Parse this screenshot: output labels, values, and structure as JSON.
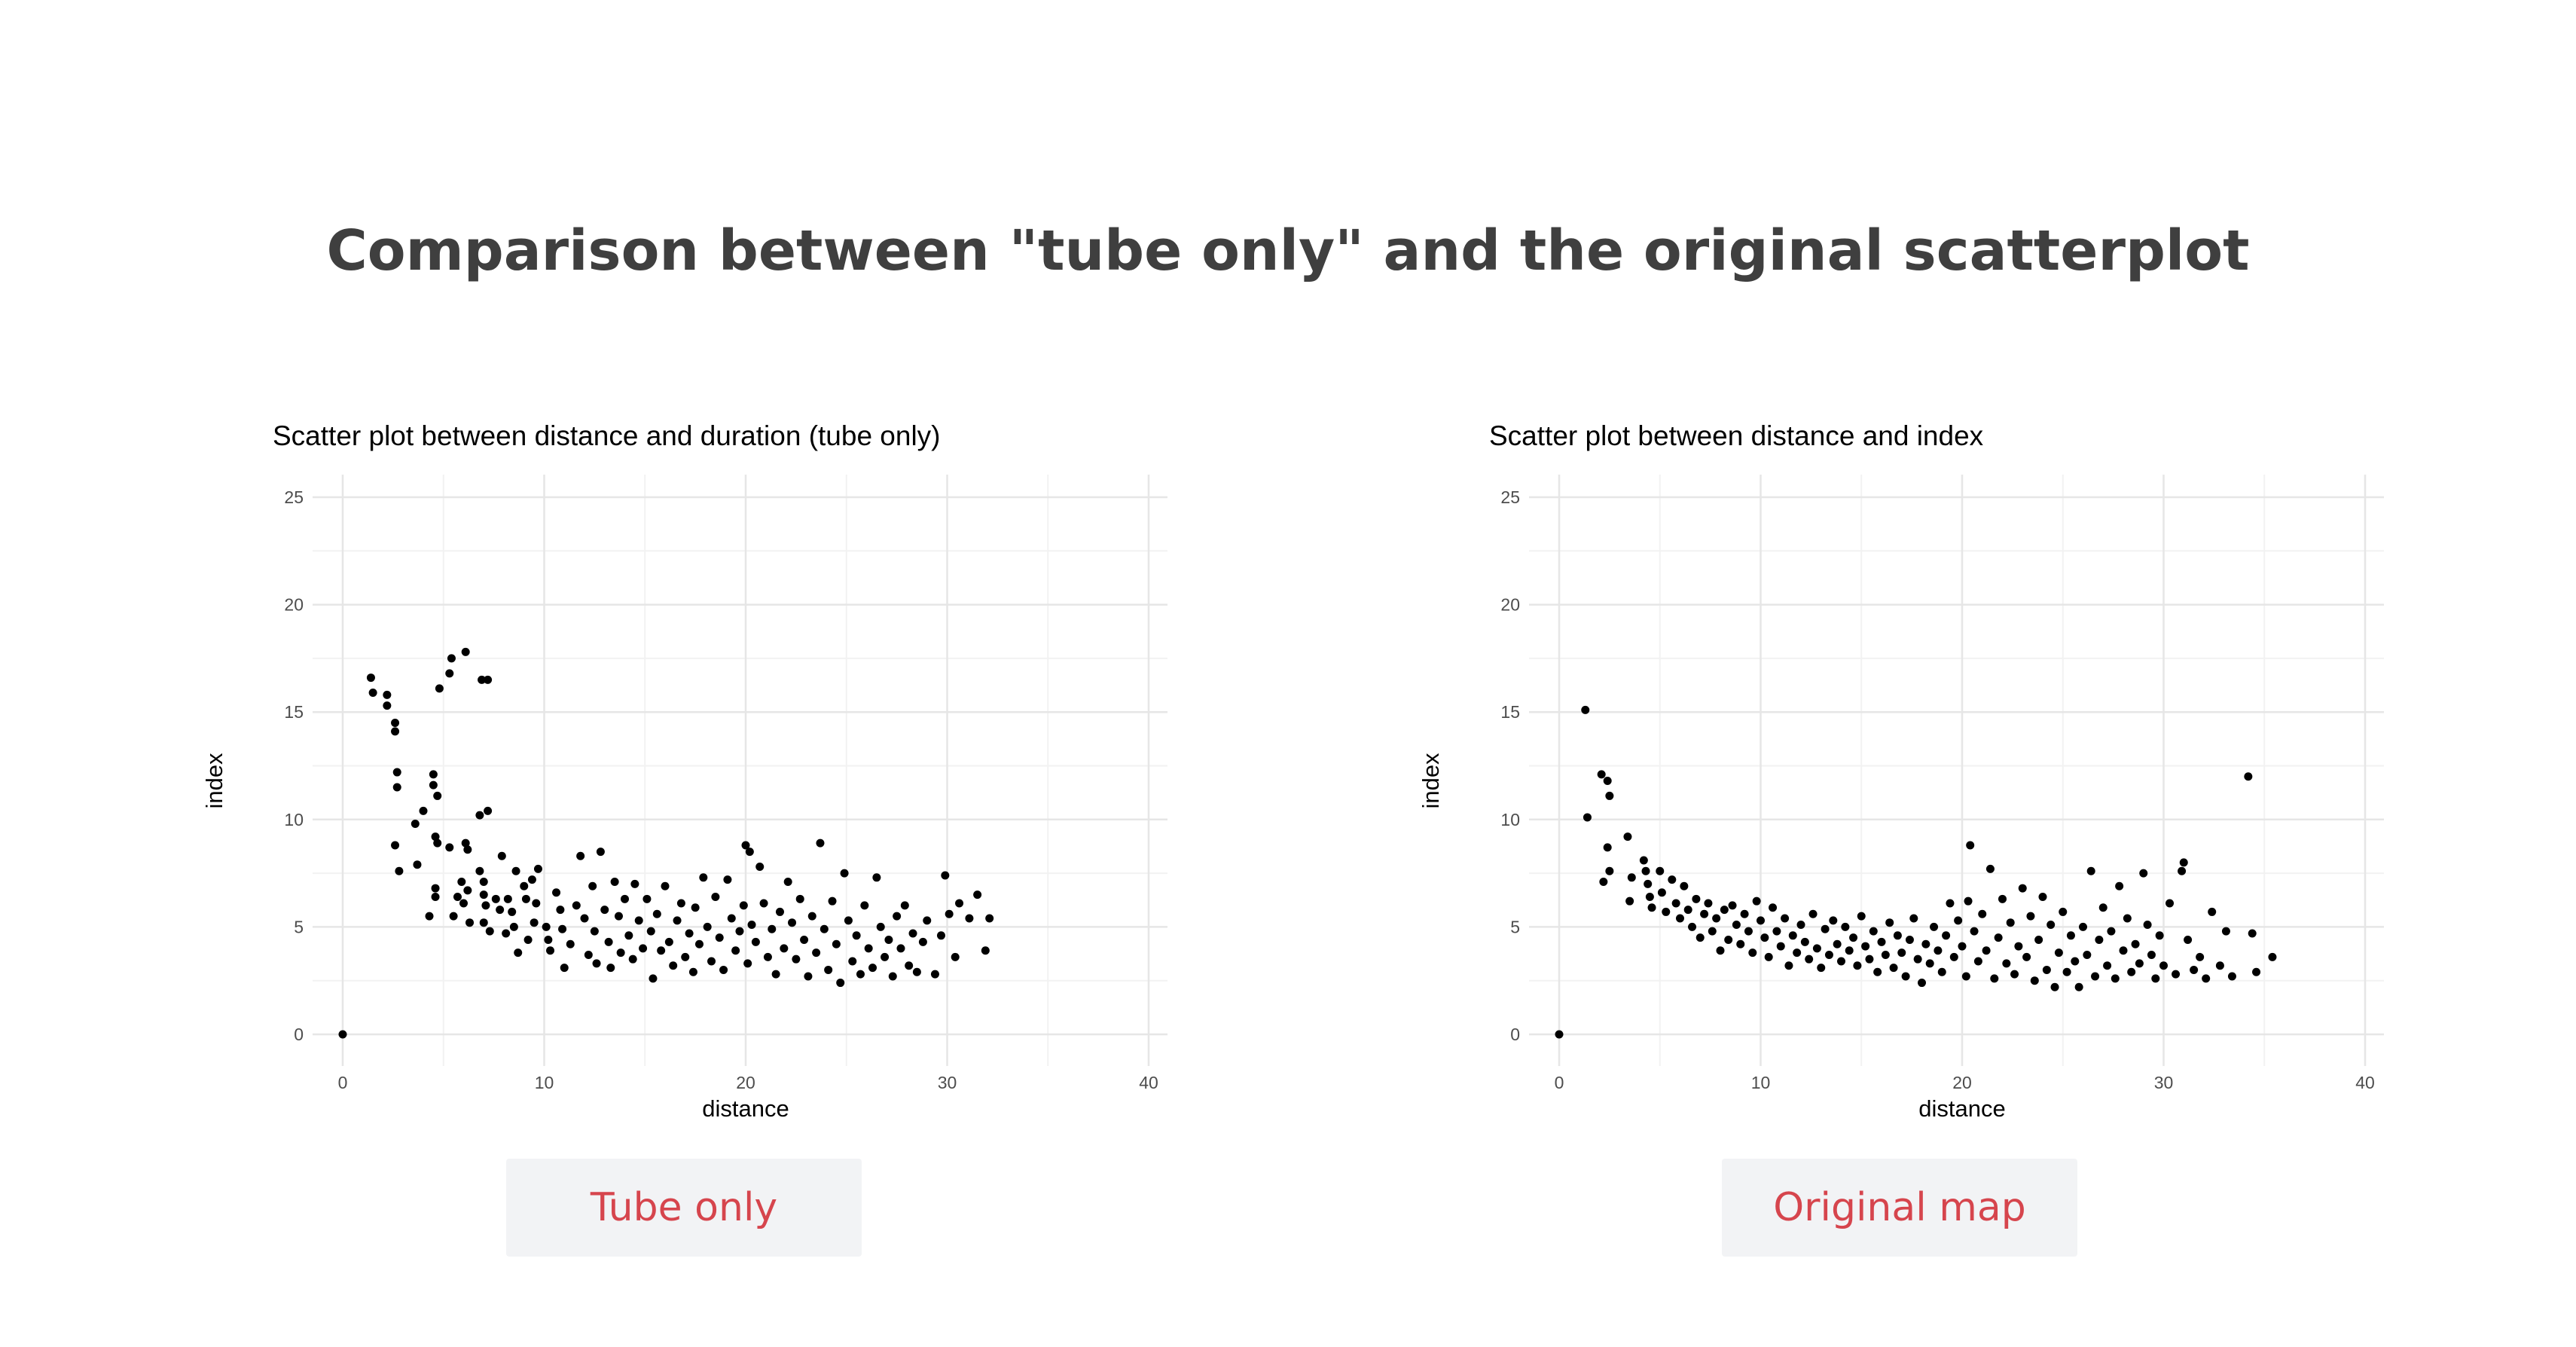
{
  "page": {
    "title": "Comparison between \"tube only\" and the original scatterplot"
  },
  "buttons": {
    "tube_only": "Tube only",
    "original_map": "Original map"
  },
  "colors": {
    "title": "#3f3f3f",
    "button_bg": "#f2f3f5",
    "button_text": "#d6454d",
    "grid": "#e6e6e6",
    "point": "#000000"
  },
  "chart_data": [
    {
      "type": "scatter",
      "title": "Scatter plot between distance and duration (tube only)",
      "xlabel": "distance",
      "ylabel": "index",
      "xlim": [
        0,
        40
      ],
      "ylim": [
        0,
        25
      ],
      "xticks": [
        0,
        10,
        20,
        30,
        40
      ],
      "yticks": [
        0,
        5,
        10,
        15,
        20,
        25
      ],
      "grid": true,
      "points": [
        [
          0,
          0
        ],
        [
          1.4,
          16.6
        ],
        [
          1.5,
          15.9
        ],
        [
          2.2,
          15.8
        ],
        [
          2.2,
          15.3
        ],
        [
          2.6,
          14.5
        ],
        [
          2.6,
          14.1
        ],
        [
          2.7,
          12.2
        ],
        [
          2.7,
          11.5
        ],
        [
          2.6,
          8.8
        ],
        [
          2.8,
          7.6
        ],
        [
          3.6,
          9.8
        ],
        [
          3.7,
          7.9
        ],
        [
          4.0,
          10.4
        ],
        [
          4.3,
          5.5
        ],
        [
          4.5,
          12.1
        ],
        [
          4.5,
          11.6
        ],
        [
          4.7,
          11.1
        ],
        [
          4.6,
          9.2
        ],
        [
          4.7,
          8.9
        ],
        [
          4.6,
          6.8
        ],
        [
          4.6,
          6.4
        ],
        [
          4.8,
          16.1
        ],
        [
          5.4,
          17.5
        ],
        [
          5.3,
          16.8
        ],
        [
          5.3,
          8.7
        ],
        [
          5.7,
          6.4
        ],
        [
          5.9,
          7.1
        ],
        [
          5.5,
          5.5
        ],
        [
          6.1,
          17.8
        ],
        [
          6.1,
          8.9
        ],
        [
          6.2,
          8.6
        ],
        [
          6.2,
          6.7
        ],
        [
          6.0,
          6.1
        ],
        [
          6.3,
          5.2
        ],
        [
          6.8,
          10.2
        ],
        [
          6.9,
          16.5
        ],
        [
          7.2,
          16.5
        ],
        [
          7.2,
          10.4
        ],
        [
          6.8,
          7.6
        ],
        [
          7.0,
          7.1
        ],
        [
          7.0,
          6.5
        ],
        [
          7.1,
          6.0
        ],
        [
          7.0,
          5.2
        ],
        [
          7.3,
          4.8
        ],
        [
          7.6,
          6.3
        ],
        [
          7.9,
          8.3
        ],
        [
          7.8,
          5.8
        ],
        [
          8.1,
          4.7
        ],
        [
          8.2,
          6.3
        ],
        [
          8.4,
          5.7
        ],
        [
          8.6,
          7.6
        ],
        [
          8.5,
          5.0
        ],
        [
          8.7,
          3.8
        ],
        [
          9.0,
          6.9
        ],
        [
          9.1,
          6.3
        ],
        [
          9.2,
          4.4
        ],
        [
          9.4,
          7.2
        ],
        [
          9.6,
          6.1
        ],
        [
          9.5,
          5.2
        ],
        [
          9.7,
          7.7
        ],
        [
          10.1,
          5.0
        ],
        [
          10.2,
          4.4
        ],
        [
          10.3,
          3.9
        ],
        [
          10.6,
          6.6
        ],
        [
          10.8,
          5.8
        ],
        [
          10.9,
          4.9
        ],
        [
          11.0,
          3.1
        ],
        [
          11.3,
          4.2
        ],
        [
          11.6,
          6.0
        ],
        [
          11.8,
          8.3
        ],
        [
          12.0,
          5.4
        ],
        [
          12.2,
          3.7
        ],
        [
          12.4,
          6.9
        ],
        [
          12.5,
          4.8
        ],
        [
          12.6,
          3.3
        ],
        [
          12.8,
          8.5
        ],
        [
          13.0,
          5.8
        ],
        [
          13.2,
          4.3
        ],
        [
          13.3,
          3.1
        ],
        [
          13.5,
          7.1
        ],
        [
          13.7,
          5.5
        ],
        [
          13.8,
          3.8
        ],
        [
          14.0,
          6.3
        ],
        [
          14.2,
          4.6
        ],
        [
          14.4,
          3.5
        ],
        [
          14.5,
          7.0
        ],
        [
          14.7,
          5.3
        ],
        [
          14.9,
          4.0
        ],
        [
          15.1,
          6.3
        ],
        [
          15.3,
          4.8
        ],
        [
          15.4,
          2.6
        ],
        [
          15.6,
          5.6
        ],
        [
          15.8,
          3.9
        ],
        [
          16.0,
          6.9
        ],
        [
          16.2,
          4.3
        ],
        [
          16.4,
          3.2
        ],
        [
          16.6,
          5.3
        ],
        [
          16.8,
          6.1
        ],
        [
          17.0,
          3.6
        ],
        [
          17.2,
          4.7
        ],
        [
          17.4,
          2.9
        ],
        [
          17.5,
          5.9
        ],
        [
          17.7,
          4.2
        ],
        [
          17.9,
          7.3
        ],
        [
          18.1,
          5.0
        ],
        [
          18.3,
          3.4
        ],
        [
          18.5,
          6.4
        ],
        [
          18.7,
          4.5
        ],
        [
          18.9,
          3.0
        ],
        [
          19.1,
          7.2
        ],
        [
          19.3,
          5.4
        ],
        [
          19.5,
          3.9
        ],
        [
          19.7,
          4.8
        ],
        [
          19.9,
          6.0
        ],
        [
          20.0,
          8.8
        ],
        [
          20.2,
          8.5
        ],
        [
          20.1,
          3.3
        ],
        [
          20.3,
          5.1
        ],
        [
          20.5,
          4.3
        ],
        [
          20.7,
          7.8
        ],
        [
          20.9,
          6.1
        ],
        [
          21.1,
          3.6
        ],
        [
          21.3,
          4.9
        ],
        [
          21.5,
          2.8
        ],
        [
          21.7,
          5.7
        ],
        [
          21.9,
          4.0
        ],
        [
          22.1,
          7.1
        ],
        [
          22.3,
          5.2
        ],
        [
          22.5,
          3.5
        ],
        [
          22.7,
          6.3
        ],
        [
          22.9,
          4.4
        ],
        [
          23.1,
          2.7
        ],
        [
          23.3,
          5.5
        ],
        [
          23.5,
          3.8
        ],
        [
          23.7,
          8.9
        ],
        [
          23.9,
          4.9
        ],
        [
          24.1,
          3.0
        ],
        [
          24.3,
          6.2
        ],
        [
          24.5,
          4.2
        ],
        [
          24.7,
          2.4
        ],
        [
          24.9,
          7.5
        ],
        [
          25.1,
          5.3
        ],
        [
          25.3,
          3.4
        ],
        [
          25.5,
          4.6
        ],
        [
          25.7,
          2.8
        ],
        [
          25.9,
          6.0
        ],
        [
          26.1,
          4.0
        ],
        [
          26.3,
          3.1
        ],
        [
          26.5,
          7.3
        ],
        [
          26.7,
          5.0
        ],
        [
          26.9,
          3.6
        ],
        [
          27.1,
          4.4
        ],
        [
          27.3,
          2.7
        ],
        [
          27.5,
          5.5
        ],
        [
          27.7,
          4.0
        ],
        [
          27.9,
          6.0
        ],
        [
          28.1,
          3.2
        ],
        [
          28.3,
          4.7
        ],
        [
          28.5,
          2.9
        ],
        [
          28.8,
          4.3
        ],
        [
          29.0,
          5.3
        ],
        [
          29.4,
          2.8
        ],
        [
          29.7,
          4.6
        ],
        [
          29.9,
          7.4
        ],
        [
          30.1,
          5.6
        ],
        [
          30.4,
          3.6
        ],
        [
          30.6,
          6.1
        ],
        [
          31.1,
          5.4
        ],
        [
          31.5,
          6.5
        ],
        [
          31.9,
          3.9
        ],
        [
          32.1,
          5.4
        ]
      ]
    },
    {
      "type": "scatter",
      "title": "Scatter plot between distance and index",
      "xlabel": "distance",
      "ylabel": "index",
      "xlim": [
        0,
        40
      ],
      "ylim": [
        0,
        25
      ],
      "xticks": [
        0,
        10,
        20,
        30,
        40
      ],
      "yticks": [
        0,
        5,
        10,
        15,
        20,
        25
      ],
      "grid": true,
      "points": [
        [
          0,
          0
        ],
        [
          1.3,
          15.1
        ],
        [
          1.4,
          10.1
        ],
        [
          2.1,
          12.1
        ],
        [
          2.4,
          11.8
        ],
        [
          2.5,
          11.1
        ],
        [
          2.4,
          8.7
        ],
        [
          2.5,
          7.6
        ],
        [
          2.2,
          7.1
        ],
        [
          3.4,
          9.2
        ],
        [
          3.6,
          7.3
        ],
        [
          3.5,
          6.2
        ],
        [
          4.2,
          8.1
        ],
        [
          4.3,
          7.6
        ],
        [
          4.5,
          6.4
        ],
        [
          4.6,
          5.9
        ],
        [
          4.4,
          7.0
        ],
        [
          5.0,
          7.6
        ],
        [
          5.1,
          6.6
        ],
        [
          5.3,
          5.7
        ],
        [
          5.6,
          7.2
        ],
        [
          5.8,
          6.1
        ],
        [
          6.0,
          5.4
        ],
        [
          6.2,
          6.9
        ],
        [
          6.4,
          5.8
        ],
        [
          6.6,
          5.0
        ],
        [
          6.8,
          6.3
        ],
        [
          7.0,
          4.5
        ],
        [
          7.2,
          5.6
        ],
        [
          7.4,
          6.1
        ],
        [
          7.6,
          4.8
        ],
        [
          7.8,
          5.4
        ],
        [
          8.0,
          3.9
        ],
        [
          8.2,
          5.8
        ],
        [
          8.4,
          4.4
        ],
        [
          8.6,
          6.0
        ],
        [
          8.8,
          5.1
        ],
        [
          9.0,
          4.2
        ],
        [
          9.2,
          5.6
        ],
        [
          9.4,
          4.8
        ],
        [
          9.6,
          3.8
        ],
        [
          9.8,
          6.2
        ],
        [
          10.0,
          5.3
        ],
        [
          10.2,
          4.5
        ],
        [
          10.4,
          3.6
        ],
        [
          10.6,
          5.9
        ],
        [
          10.8,
          4.8
        ],
        [
          11.0,
          4.1
        ],
        [
          11.2,
          5.4
        ],
        [
          11.4,
          3.2
        ],
        [
          11.6,
          4.6
        ],
        [
          11.8,
          3.8
        ],
        [
          12.0,
          5.1
        ],
        [
          12.2,
          4.3
        ],
        [
          12.4,
          3.5
        ],
        [
          12.6,
          5.6
        ],
        [
          12.8,
          4.0
        ],
        [
          13.0,
          3.1
        ],
        [
          13.2,
          4.9
        ],
        [
          13.4,
          3.7
        ],
        [
          13.6,
          5.3
        ],
        [
          13.8,
          4.2
        ],
        [
          14.0,
          3.4
        ],
        [
          14.2,
          5.0
        ],
        [
          14.4,
          3.9
        ],
        [
          14.6,
          4.5
        ],
        [
          14.8,
          3.2
        ],
        [
          15.0,
          5.5
        ],
        [
          15.2,
          4.1
        ],
        [
          15.4,
          3.5
        ],
        [
          15.6,
          4.8
        ],
        [
          15.8,
          2.9
        ],
        [
          16.0,
          4.3
        ],
        [
          16.2,
          3.7
        ],
        [
          16.4,
          5.2
        ],
        [
          16.6,
          3.1
        ],
        [
          16.8,
          4.6
        ],
        [
          17.0,
          3.8
        ],
        [
          17.2,
          2.7
        ],
        [
          17.4,
          4.4
        ],
        [
          17.6,
          5.4
        ],
        [
          17.8,
          3.5
        ],
        [
          18.0,
          2.4
        ],
        [
          18.2,
          4.2
        ],
        [
          18.4,
          3.3
        ],
        [
          18.6,
          5.0
        ],
        [
          18.8,
          3.9
        ],
        [
          19.0,
          2.9
        ],
        [
          19.2,
          4.6
        ],
        [
          19.4,
          6.1
        ],
        [
          19.6,
          3.6
        ],
        [
          19.8,
          5.3
        ],
        [
          20.0,
          4.1
        ],
        [
          20.2,
          2.7
        ],
        [
          20.4,
          8.8
        ],
        [
          20.3,
          6.2
        ],
        [
          20.6,
          4.8
        ],
        [
          20.8,
          3.4
        ],
        [
          21.0,
          5.6
        ],
        [
          21.2,
          3.9
        ],
        [
          21.4,
          7.7
        ],
        [
          21.6,
          2.6
        ],
        [
          21.8,
          4.5
        ],
        [
          22.0,
          6.3
        ],
        [
          22.2,
          3.3
        ],
        [
          22.4,
          5.2
        ],
        [
          22.6,
          2.8
        ],
        [
          22.8,
          4.1
        ],
        [
          23.0,
          6.8
        ],
        [
          23.2,
          3.6
        ],
        [
          23.4,
          5.5
        ],
        [
          23.6,
          2.5
        ],
        [
          23.8,
          4.4
        ],
        [
          24.0,
          6.4
        ],
        [
          24.2,
          3.0
        ],
        [
          24.4,
          5.1
        ],
        [
          24.6,
          2.2
        ],
        [
          24.8,
          3.8
        ],
        [
          25.0,
          5.7
        ],
        [
          25.2,
          2.9
        ],
        [
          25.4,
          4.6
        ],
        [
          25.6,
          3.4
        ],
        [
          25.8,
          2.2
        ],
        [
          26.0,
          5.0
        ],
        [
          26.2,
          3.7
        ],
        [
          26.4,
          7.6
        ],
        [
          26.6,
          2.7
        ],
        [
          26.8,
          4.4
        ],
        [
          27.0,
          5.9
        ],
        [
          27.2,
          3.2
        ],
        [
          27.4,
          4.8
        ],
        [
          27.6,
          2.6
        ],
        [
          27.8,
          6.9
        ],
        [
          28.0,
          3.9
        ],
        [
          28.2,
          5.4
        ],
        [
          28.4,
          2.9
        ],
        [
          28.6,
          4.2
        ],
        [
          28.8,
          3.3
        ],
        [
          29.0,
          7.5
        ],
        [
          29.2,
          5.1
        ],
        [
          29.4,
          3.7
        ],
        [
          29.6,
          2.6
        ],
        [
          29.8,
          4.6
        ],
        [
          30.0,
          3.2
        ],
        [
          30.3,
          6.1
        ],
        [
          30.6,
          2.8
        ],
        [
          30.9,
          7.6
        ],
        [
          31.0,
          8.0
        ],
        [
          31.2,
          4.4
        ],
        [
          31.5,
          3.0
        ],
        [
          31.8,
          3.6
        ],
        [
          32.1,
          2.6
        ],
        [
          32.4,
          5.7
        ],
        [
          32.8,
          3.2
        ],
        [
          33.1,
          4.8
        ],
        [
          33.4,
          2.7
        ],
        [
          34.2,
          12.0
        ],
        [
          34.4,
          4.7
        ],
        [
          34.6,
          2.9
        ],
        [
          35.4,
          3.6
        ]
      ]
    }
  ]
}
